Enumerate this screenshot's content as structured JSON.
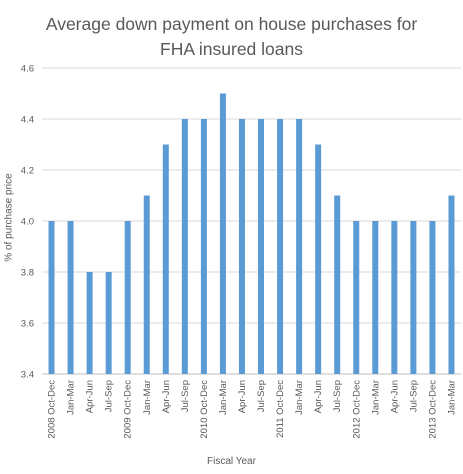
{
  "chart_data": {
    "type": "bar",
    "title_lines": [
      "Average down payment on house purchases for",
      "FHA insured loans"
    ],
    "xlabel": "Fiscal Year",
    "ylabel": "% of purchase price",
    "ylim": [
      3.4,
      4.6
    ],
    "yticks": [
      "3.4",
      "3.6",
      "3.8",
      "4.0",
      "4.2",
      "4.4",
      "4.6"
    ],
    "grid": true,
    "legend": "none",
    "bar_color": "#5b9bd5",
    "categories": [
      "2008 Oct-Dec",
      "Jan-Mar",
      "Apr-Jun",
      "Jul-Sep",
      "2009 Oct-Dec",
      "Jan-Mar",
      "Apr-Jun",
      "Jul-Sep",
      "2010 Oct-Dec",
      "Jan-Mar",
      "Apr-Jun",
      "Jul-Sep",
      "2011 Oct-Dec",
      "Jan-Mar",
      "Apr-Jun",
      "Jul-Sep",
      "2012 Oct-Dec",
      "Jan-Mar",
      "Apr-Jun",
      "Jul-Sep",
      "2013 Oct-Dec",
      "Jan-Mar"
    ],
    "values": [
      4.0,
      4.0,
      3.8,
      3.8,
      4.0,
      4.1,
      4.3,
      4.4,
      4.4,
      4.5,
      4.4,
      4.4,
      4.4,
      4.4,
      4.3,
      4.1,
      4.0,
      4.0,
      4.0,
      4.0,
      4.0,
      4.1
    ]
  }
}
